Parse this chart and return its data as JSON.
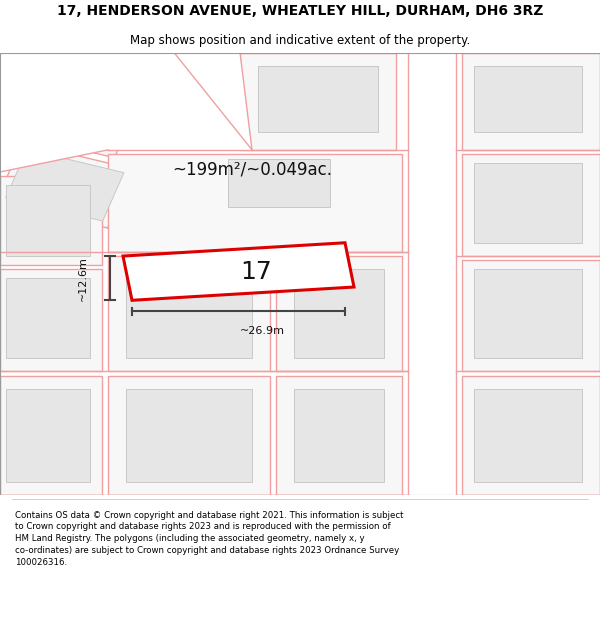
{
  "title_line1": "17, HENDERSON AVENUE, WHEATLEY HILL, DURHAM, DH6 3RZ",
  "title_line2": "Map shows position and indicative extent of the property.",
  "footer_text": "Contains OS data © Crown copyright and database right 2021. This information is subject to Crown copyright and database rights 2023 and is reproduced with the permission of HM Land Registry. The polygons (including the associated geometry, namely x, y co-ordinates) are subject to Crown copyright and database rights 2023 Ordnance Survey 100026316.",
  "area_label": "~199m²/~0.049ac.",
  "width_label": "~26.9m",
  "height_label": "~12.6m",
  "property_number": "17",
  "bg_color": "#ffffff",
  "map_bg": "#ffffff",
  "building_fill": "#e8e8e8",
  "building_edge": "#c8c8c8",
  "plot_edge_color": "#f0a0a0",
  "highlight_color": "#dd0000",
  "dim_line_color": "#444444",
  "title_color": "#000000",
  "footer_color": "#000000",
  "title_fontsize": 10,
  "subtitle_fontsize": 8.5,
  "footer_fontsize": 6.2,
  "area_fontsize": 12,
  "prop_num_fontsize": 18,
  "dim_fontsize": 8
}
